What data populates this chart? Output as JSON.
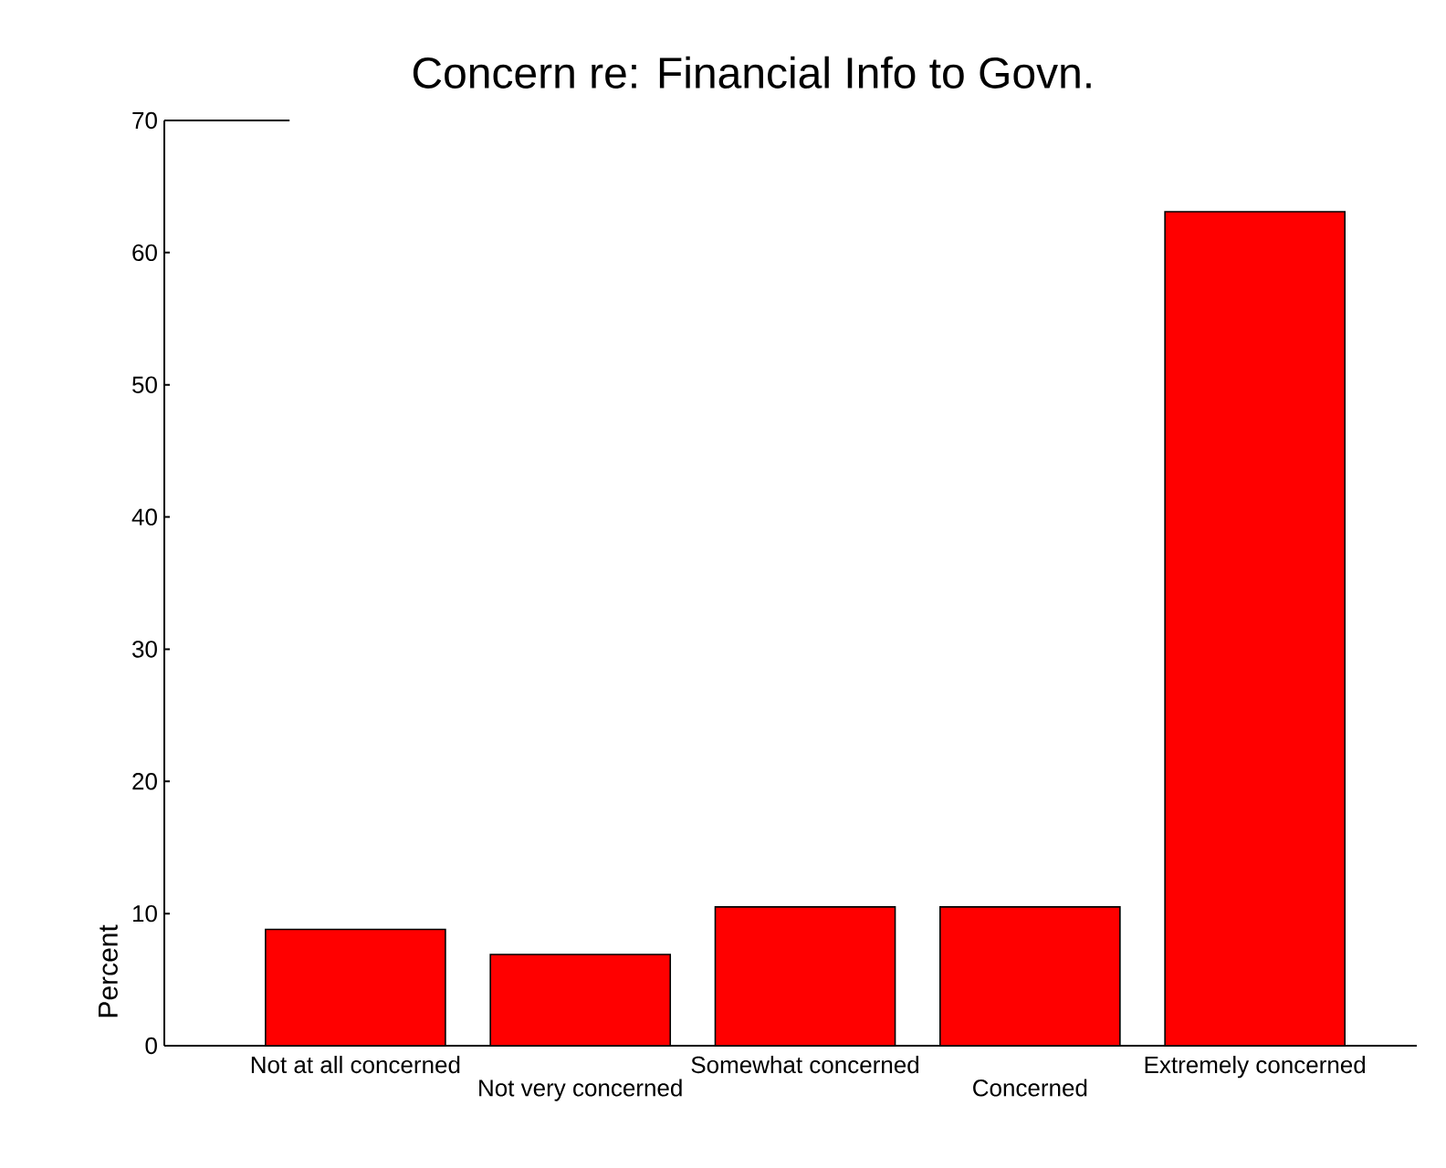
{
  "chart_data": {
    "type": "bar",
    "title": "Concern re: Financial Info to Govn.",
    "ylabel": "Percent",
    "categories": [
      "Not at all concerned",
      "Not very concerned",
      "Somewhat concerned",
      "Concerned",
      "Extremely concerned"
    ],
    "values": [
      8.8,
      6.9,
      10.5,
      10.5,
      63.1
    ],
    "color": "#ff0000",
    "ylim": [
      0,
      70
    ],
    "yticks": [
      0,
      10,
      20,
      30,
      40,
      50,
      60,
      70
    ],
    "grid": false
  }
}
